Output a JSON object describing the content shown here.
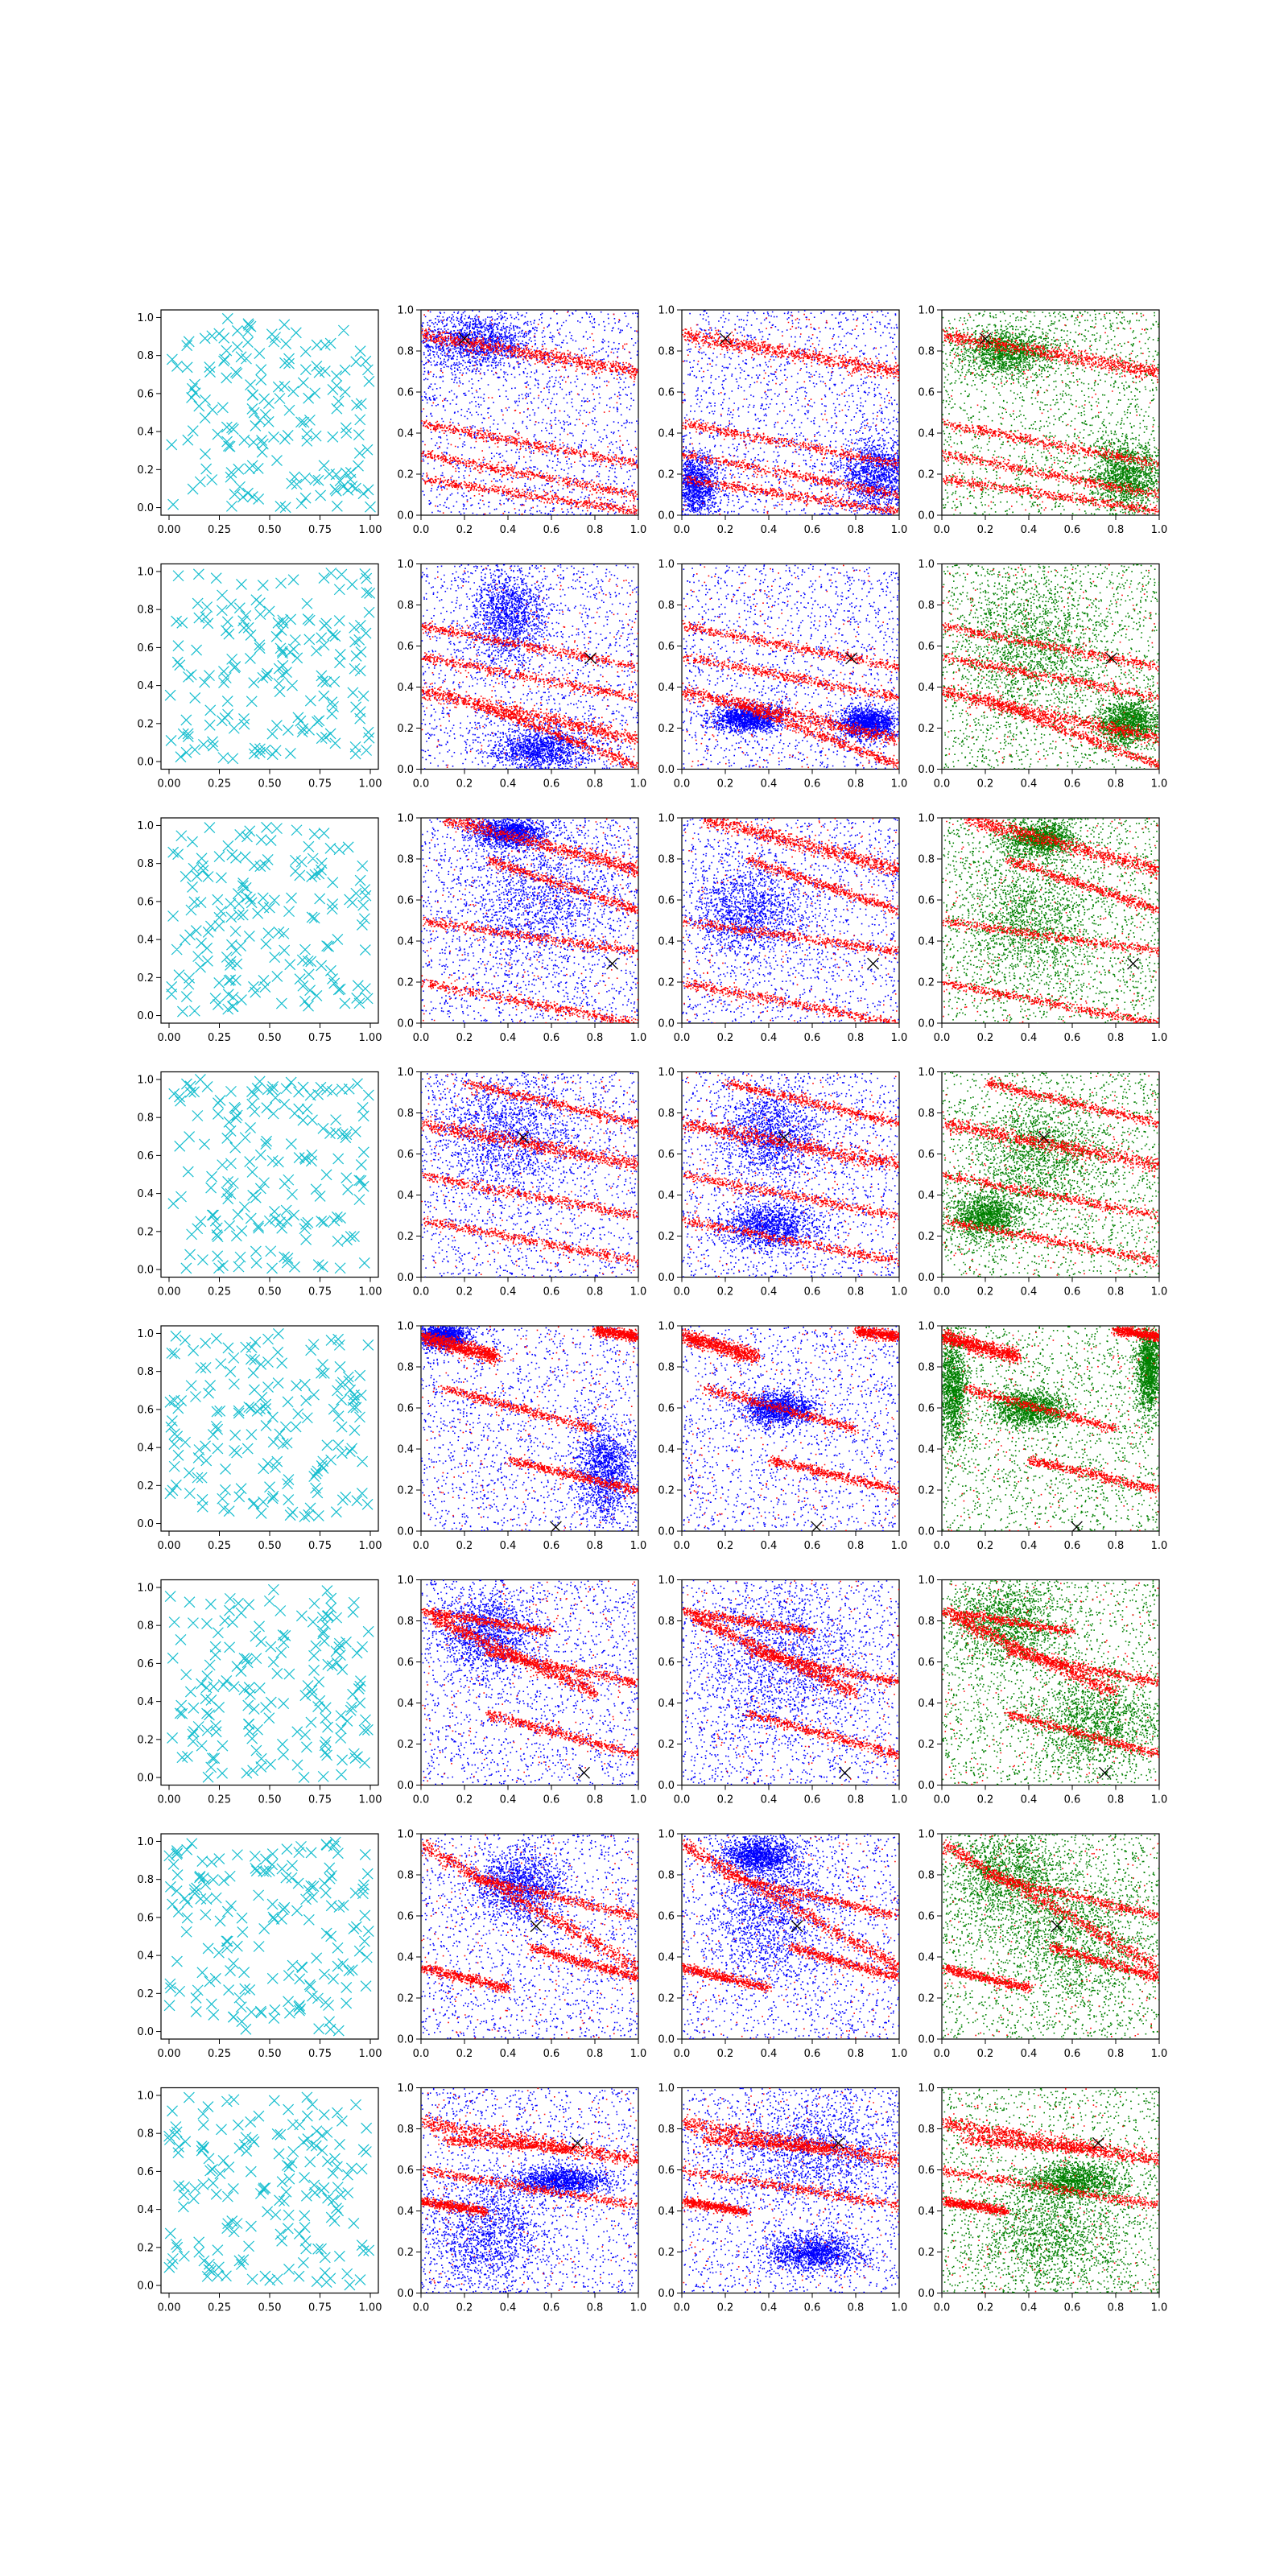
{
  "figure": {
    "rows": 8,
    "cols": 4,
    "background": "#ffffff"
  },
  "colors": {
    "cyan_markers": "#17becf",
    "blue_points": "#0000ff",
    "red_points": "#ff0000",
    "green_points": "#008000",
    "black_marker": "#000000"
  },
  "axes": {
    "col0_x_ticks": [
      "0.00",
      "0.25",
      "0.50",
      "0.75",
      "1.00"
    ],
    "col0_x_values": [
      0,
      0.25,
      0.5,
      0.75,
      1.0
    ],
    "other_x_ticks": [
      "0.0",
      "0.2",
      "0.4",
      "0.6",
      "0.8",
      "1.0"
    ],
    "other_x_values": [
      0,
      0.2,
      0.4,
      0.6,
      0.8,
      1.0
    ],
    "y_ticks": [
      "0.0",
      "0.2",
      "0.4",
      "0.6",
      "0.8",
      "1.0"
    ],
    "y_values": [
      0,
      0.2,
      0.4,
      0.6,
      0.8,
      1.0
    ],
    "col0_xlim": [
      -0.04,
      1.04
    ],
    "col0_ylim": [
      -0.04,
      1.04
    ],
    "other_xlim": [
      0,
      1
    ],
    "other_ylim": [
      0,
      1
    ],
    "grid": false
  },
  "chart_data": {
    "type": "scatter",
    "title": "",
    "xlabel": "",
    "ylabel": "",
    "note": "8x4 grid of scatter plots; column 1: random x markers; columns 2-4: dense point clouds with red diagonal bands plus a black x marker",
    "rows": [
      {
        "marker": [
          0.2,
          0.86
        ],
        "bands": [
          {
            "x0": 0,
            "y0": 0.88,
            "x1": 1,
            "y1": 0.7
          },
          {
            "x0": 0,
            "y0": 0.45,
            "x1": 1,
            "y1": 0.25
          },
          {
            "x0": 0,
            "y0": 0.3,
            "x1": 1,
            "y1": 0.1
          },
          {
            "x0": 0,
            "y0": 0.18,
            "x1": 1,
            "y1": 0.02
          }
        ],
        "blue_c2": [
          [
            0.25,
            0.85,
            0.25,
            0.12
          ]
        ],
        "blue_c3": [
          [
            0.9,
            0.2,
            0.15,
            0.15
          ],
          [
            0.05,
            0.15,
            0.1,
            0.15
          ]
        ],
        "green_c4": [
          [
            0.85,
            0.2,
            0.15,
            0.15
          ],
          [
            0.3,
            0.8,
            0.2,
            0.1
          ]
        ]
      },
      {
        "marker": [
          0.78,
          0.54
        ],
        "bands": [
          {
            "x0": 0,
            "y0": 0.38,
            "x1": 1,
            "y1": 0.15
          },
          {
            "x0": 0.25,
            "y0": 0.32,
            "x1": 1,
            "y1": 0.02
          },
          {
            "x0": 0,
            "y0": 0.55,
            "x1": 1,
            "y1": 0.35
          },
          {
            "x0": 0,
            "y0": 0.7,
            "x1": 1,
            "y1": 0.5
          }
        ],
        "blue_c2": [
          [
            0.55,
            0.1,
            0.2,
            0.1
          ],
          [
            0.4,
            0.75,
            0.15,
            0.2
          ]
        ],
        "blue_c3": [
          [
            0.85,
            0.23,
            0.12,
            0.07
          ],
          [
            0.3,
            0.25,
            0.15,
            0.06
          ]
        ],
        "green_c4": [
          [
            0.85,
            0.23,
            0.12,
            0.1
          ],
          [
            0.4,
            0.6,
            0.3,
            0.3
          ]
        ]
      },
      {
        "marker": [
          0.88,
          0.29
        ],
        "bands": [
          {
            "x0": 0.1,
            "y0": 1.0,
            "x1": 1,
            "y1": 0.75
          },
          {
            "x0": 0.3,
            "y0": 0.8,
            "x1": 1,
            "y1": 0.55
          },
          {
            "x0": 0,
            "y0": 0.2,
            "x1": 1,
            "y1": 0.0
          },
          {
            "x0": 0,
            "y0": 0.5,
            "x1": 1,
            "y1": 0.35
          }
        ],
        "blue_c2": [
          [
            0.4,
            0.93,
            0.15,
            0.06
          ],
          [
            0.55,
            0.6,
            0.35,
            0.3
          ]
        ],
        "blue_c3": [
          [
            0.3,
            0.55,
            0.25,
            0.2
          ]
        ],
        "green_c4": [
          [
            0.45,
            0.9,
            0.15,
            0.08
          ],
          [
            0.4,
            0.5,
            0.3,
            0.3
          ]
        ]
      },
      {
        "marker": [
          0.47,
          0.68
        ],
        "bands": [
          {
            "x0": 0,
            "y0": 0.75,
            "x1": 1,
            "y1": 0.55
          },
          {
            "x0": 0,
            "y0": 0.5,
            "x1": 1,
            "y1": 0.3
          },
          {
            "x0": 0,
            "y0": 0.28,
            "x1": 1,
            "y1": 0.08
          },
          {
            "x0": 0.2,
            "y0": 0.95,
            "x1": 1,
            "y1": 0.75
          }
        ],
        "blue_c2": [
          [
            0.4,
            0.7,
            0.3,
            0.25
          ]
        ],
        "blue_c3": [
          [
            0.4,
            0.25,
            0.2,
            0.1
          ],
          [
            0.4,
            0.7,
            0.2,
            0.2
          ]
        ],
        "green_c4": [
          [
            0.45,
            0.6,
            0.25,
            0.25
          ],
          [
            0.2,
            0.3,
            0.15,
            0.1
          ]
        ]
      },
      {
        "marker": [
          0.62,
          0.02
        ],
        "bands": [
          {
            "x0": 0,
            "y0": 0.95,
            "x1": 0.35,
            "y1": 0.85
          },
          {
            "x0": 0.8,
            "y0": 0.98,
            "x1": 1,
            "y1": 0.95
          },
          {
            "x0": 0.1,
            "y0": 0.7,
            "x1": 0.8,
            "y1": 0.5
          },
          {
            "x0": 0.4,
            "y0": 0.35,
            "x1": 1,
            "y1": 0.2
          }
        ],
        "blue_c2": [
          [
            0.1,
            0.95,
            0.1,
            0.05
          ],
          [
            0.85,
            0.3,
            0.12,
            0.2
          ]
        ],
        "blue_c3": [
          [
            0.45,
            0.6,
            0.15,
            0.07
          ]
        ],
        "green_c4": [
          [
            0.05,
            0.7,
            0.06,
            0.25
          ],
          [
            0.4,
            0.6,
            0.15,
            0.08
          ],
          [
            0.95,
            0.8,
            0.05,
            0.2
          ]
        ]
      },
      {
        "marker": [
          0.75,
          0.06
        ],
        "bands": [
          {
            "x0": 0.05,
            "y0": 0.82,
            "x1": 0.8,
            "y1": 0.45
          },
          {
            "x0": 0.3,
            "y0": 0.35,
            "x1": 1,
            "y1": 0.15
          },
          {
            "x0": 0,
            "y0": 0.85,
            "x1": 0.6,
            "y1": 0.75
          },
          {
            "x0": 0.3,
            "y0": 0.65,
            "x1": 1,
            "y1": 0.5
          }
        ],
        "blue_c2": [
          [
            0.3,
            0.75,
            0.2,
            0.2
          ]
        ],
        "blue_c3": [
          [
            0.45,
            0.6,
            0.35,
            0.35
          ]
        ],
        "green_c4": [
          [
            0.3,
            0.8,
            0.25,
            0.2
          ],
          [
            0.7,
            0.3,
            0.25,
            0.2
          ]
        ]
      },
      {
        "marker": [
          0.53,
          0.55
        ],
        "bands": [
          {
            "x0": 0,
            "y0": 0.95,
            "x1": 1,
            "y1": 0.35
          },
          {
            "x0": 0,
            "y0": 0.35,
            "x1": 0.4,
            "y1": 0.25
          },
          {
            "x0": 0.2,
            "y0": 0.8,
            "x1": 1,
            "y1": 0.6
          },
          {
            "x0": 0.5,
            "y0": 0.45,
            "x1": 1,
            "y1": 0.3
          }
        ],
        "blue_c2": [
          [
            0.45,
            0.75,
            0.2,
            0.15
          ]
        ],
        "blue_c3": [
          [
            0.35,
            0.9,
            0.15,
            0.08
          ],
          [
            0.4,
            0.6,
            0.25,
            0.3
          ]
        ],
        "green_c4": [
          [
            0.3,
            0.8,
            0.25,
            0.2
          ],
          [
            0.6,
            0.5,
            0.3,
            0.3
          ]
        ]
      },
      {
        "marker": [
          0.72,
          0.73
        ],
        "bands": [
          {
            "x0": 0,
            "y0": 0.83,
            "x1": 1,
            "y1": 0.65
          },
          {
            "x0": 0,
            "y0": 0.6,
            "x1": 1,
            "y1": 0.43
          },
          {
            "x0": 0,
            "y0": 0.45,
            "x1": 0.3,
            "y1": 0.4
          },
          {
            "x0": 0.1,
            "y0": 0.75,
            "x1": 0.7,
            "y1": 0.7
          }
        ],
        "blue_c2": [
          [
            0.65,
            0.55,
            0.2,
            0.06
          ],
          [
            0.3,
            0.3,
            0.25,
            0.25
          ]
        ],
        "blue_c3": [
          [
            0.6,
            0.2,
            0.2,
            0.08
          ],
          [
            0.6,
            0.7,
            0.35,
            0.25
          ]
        ],
        "green_c4": [
          [
            0.6,
            0.55,
            0.2,
            0.08
          ],
          [
            0.5,
            0.3,
            0.3,
            0.25
          ]
        ]
      }
    ]
  }
}
